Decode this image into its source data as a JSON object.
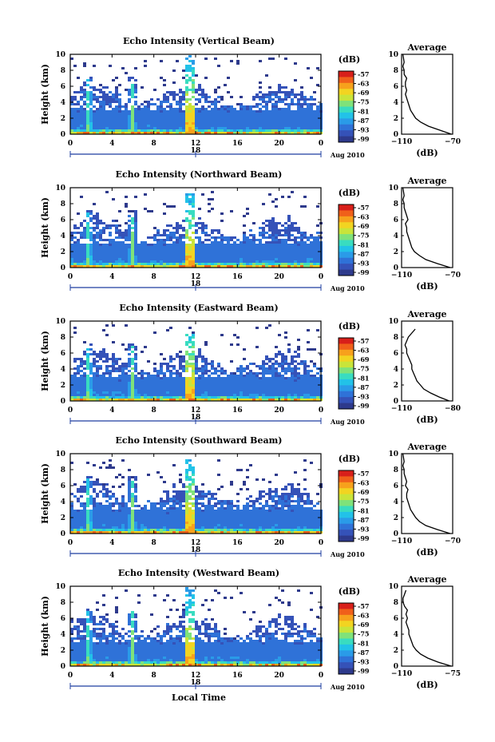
{
  "colors": {
    "background": "#ffffff",
    "colormap": [
      "#2e3a8c",
      "#3552b8",
      "#2f72d8",
      "#2a9be8",
      "#22c2e8",
      "#39dcc0",
      "#7fe27a",
      "#c9e43a",
      "#f2d421",
      "#f7a11c",
      "#f0601a",
      "#d81f1a"
    ],
    "frame": "#000000"
  },
  "chart_data": [
    {
      "type": "heatmap",
      "title": "Echo Intensity (Vertical Beam)",
      "ylabel": "Height (km)",
      "xticks": [
        "0",
        "4",
        "8",
        "12",
        "16",
        "20",
        "0"
      ],
      "yticks": [
        "0",
        "2",
        "4",
        "6",
        "8",
        "10"
      ],
      "xlim": [
        0,
        24
      ],
      "ylim": [
        0,
        10
      ],
      "date_marker": "18",
      "date_label": "Aug 2010",
      "colorbar": {
        "label": "(dB)",
        "ticks": [
          "-57",
          "-63",
          "-69",
          "-75",
          "-81",
          "-87",
          "-93",
          "-99"
        ]
      },
      "features": {
        "vertical_spikes_hours": [
          1.6,
          5.8,
          11.2
        ],
        "max_height_spike_km": 10
      },
      "profile": {
        "title": "Average",
        "xlabel": "(dB)",
        "xticks": [
          "-110",
          "-70"
        ],
        "xlim": [
          -110,
          -70
        ],
        "height_km": [
          0,
          0.5,
          1,
          1.5,
          2,
          2.5,
          3,
          3.5,
          4,
          4.5,
          5,
          5.5,
          6,
          6.5,
          7,
          7.5,
          8,
          8.5,
          9,
          10
        ],
        "db": [
          -71,
          -80,
          -89,
          -95,
          -99,
          -101,
          -103,
          -104,
          -105,
          -106,
          -107,
          -106,
          -107,
          -107,
          -106,
          -108,
          -108,
          -109,
          -108,
          -109
        ]
      }
    },
    {
      "type": "heatmap",
      "title": "Echo Intensity (Northward Beam)",
      "ylabel": "Height (km)",
      "xticks": [
        "0",
        "4",
        "8",
        "12",
        "16",
        "20",
        "0"
      ],
      "yticks": [
        "0",
        "2",
        "4",
        "6",
        "8",
        "10"
      ],
      "xlim": [
        0,
        24
      ],
      "ylim": [
        0,
        10
      ],
      "date_marker": "18",
      "date_label": "Aug 2010",
      "colorbar": {
        "label": "(dB)",
        "ticks": [
          "-57",
          "-63",
          "-69",
          "-75",
          "-81",
          "-87",
          "-93",
          "-99"
        ]
      },
      "features": {
        "vertical_spikes_hours": [
          1.6,
          5.8,
          11.2
        ],
        "max_height_spike_km": 9.5
      },
      "profile": {
        "title": "Average",
        "xlabel": "(dB)",
        "xticks": [
          "-110",
          "-70"
        ],
        "xlim": [
          -110,
          -70
        ],
        "height_km": [
          0,
          0.5,
          1,
          1.5,
          2,
          2.5,
          3,
          3.5,
          4,
          4.5,
          5,
          5.5,
          6,
          6.5,
          7,
          7.5,
          8,
          8.5,
          9,
          10
        ],
        "db": [
          -72,
          -82,
          -91,
          -96,
          -100,
          -102,
          -103,
          -104,
          -105,
          -106,
          -106,
          -107,
          -105,
          -106,
          -107,
          -108,
          -108,
          -109,
          -108,
          -109
        ]
      }
    },
    {
      "type": "heatmap",
      "title": "Echo Intensity (Eastward Beam)",
      "ylabel": "Height (km)",
      "xticks": [
        "0",
        "4",
        "8",
        "12",
        "16",
        "20",
        "0"
      ],
      "yticks": [
        "0",
        "2",
        "4",
        "6",
        "8",
        "10"
      ],
      "xlim": [
        0,
        24
      ],
      "ylim": [
        0,
        10
      ],
      "date_marker": "18",
      "date_label": "Aug 2010",
      "colorbar": {
        "label": "(dB)",
        "ticks": [
          "-57",
          "-63",
          "-69",
          "-75",
          "-81",
          "-87",
          "-93",
          "-99"
        ]
      },
      "features": {
        "vertical_spikes_hours": [
          1.6,
          5.8,
          11.2
        ],
        "max_height_spike_km": 8.5
      },
      "profile": {
        "title": "Average",
        "xlabel": "(dB)",
        "xticks": [
          "-110",
          "-80"
        ],
        "xlim": [
          -110,
          -80
        ],
        "height_km": [
          0,
          0.5,
          1,
          1.5,
          2,
          2.5,
          3,
          3.5,
          4,
          4.5,
          5,
          5.5,
          6,
          6.5,
          7,
          7.5,
          8,
          8.5,
          9
        ],
        "db": [
          -82,
          -88,
          -93,
          -97,
          -99,
          -101,
          -102,
          -103,
          -104,
          -104,
          -105,
          -106,
          -107,
          -107,
          -108,
          -107,
          -106,
          -104,
          -102
        ]
      }
    },
    {
      "type": "heatmap",
      "title": "Echo Intensity (Southward Beam)",
      "ylabel": "Height (km)",
      "xticks": [
        "0",
        "4",
        "8",
        "12",
        "16",
        "20",
        "0"
      ],
      "yticks": [
        "0",
        "2",
        "4",
        "6",
        "8",
        "10"
      ],
      "xlim": [
        0,
        24
      ],
      "ylim": [
        0,
        10
      ],
      "date_marker": "18",
      "date_label": "Aug 2010",
      "colorbar": {
        "label": "(dB)",
        "ticks": [
          "-57",
          "-63",
          "-69",
          "-75",
          "-81",
          "-87",
          "-93",
          "-99"
        ]
      },
      "features": {
        "vertical_spikes_hours": [
          1.6,
          5.8,
          11.2
        ],
        "max_height_spike_km": 9.5
      },
      "profile": {
        "title": "Average",
        "xlabel": "(dB)",
        "xticks": [
          "-110",
          "-70"
        ],
        "xlim": [
          -110,
          -70
        ],
        "height_km": [
          0,
          0.5,
          1,
          1.5,
          2,
          2.5,
          3,
          3.5,
          4,
          4.5,
          5,
          5.5,
          6,
          6.5,
          7,
          7.5,
          8,
          8.5,
          9,
          10
        ],
        "db": [
          -72,
          -82,
          -91,
          -96,
          -99,
          -101,
          -103,
          -104,
          -105,
          -106,
          -106,
          -105,
          -107,
          -106,
          -107,
          -108,
          -108,
          -109,
          -108,
          -109
        ]
      }
    },
    {
      "type": "heatmap",
      "title": "Echo Intensity (Westward Beam)",
      "ylabel": "Height (km)",
      "xlabel": "Local Time",
      "xticks": [
        "0",
        "4",
        "8",
        "12",
        "16",
        "20",
        "0"
      ],
      "yticks": [
        "0",
        "2",
        "4",
        "6",
        "8",
        "10"
      ],
      "xlim": [
        0,
        24
      ],
      "ylim": [
        0,
        10
      ],
      "date_marker": "18",
      "date_label": "Aug 2010",
      "colorbar": {
        "label": "(dB)",
        "ticks": [
          "-57",
          "-63",
          "-69",
          "-75",
          "-81",
          "-87",
          "-93",
          "-99"
        ]
      },
      "features": {
        "vertical_spikes_hours": [
          1.6,
          5.8,
          11.2
        ],
        "max_height_spike_km": 10
      },
      "profile": {
        "title": "Average",
        "xlabel": "(dB)",
        "xticks": [
          "-110",
          "-75"
        ],
        "xlim": [
          -110,
          -75
        ],
        "height_km": [
          0,
          0.5,
          1,
          1.5,
          2,
          2.5,
          3,
          3.5,
          4,
          4.5,
          5,
          5.5,
          6,
          6.5,
          7,
          7.5,
          8,
          8.5,
          9,
          9.5
        ],
        "db": [
          -76,
          -85,
          -92,
          -97,
          -100,
          -102,
          -103,
          -104,
          -105,
          -105,
          -106,
          -107,
          -106,
          -107,
          -106,
          -108,
          -109,
          -109,
          -108,
          -107
        ]
      }
    }
  ]
}
